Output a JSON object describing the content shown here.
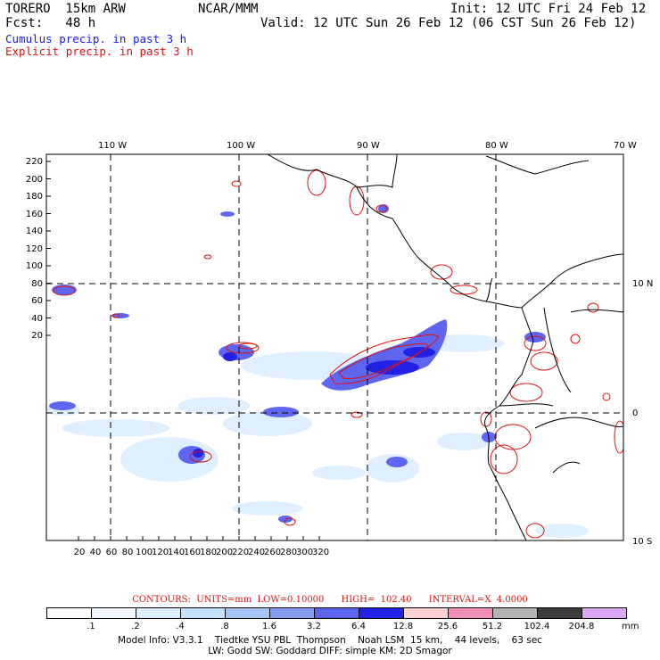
{
  "header": {
    "model": "TORERO  15km ARW",
    "org": "NCAR/MMM",
    "init": "Init: 12 UTC Fri 24 Feb 12",
    "fcst": "Fcst:   48 h",
    "valid": "Valid: 12 UTC Sun 26 Feb 12 (06 CST Sun 26 Feb 12)",
    "cumulus_label": "Cumulus precip. in past 3 h",
    "explicit_label": "Explicit precip. in past 3 h"
  },
  "colors": {
    "cumulus": "#1a1aff",
    "explicit": "#e01010",
    "coast": "#000000"
  },
  "axes": {
    "lon_labels": [
      "110 W",
      "100 W",
      "90 W",
      "80 W",
      "70 W"
    ],
    "lat_labels": [
      "10 N",
      "0",
      "10 S"
    ],
    "y_ticks": [
      "220",
      "200",
      "180",
      "160",
      "140",
      "120",
      "100",
      "80",
      "60",
      "40",
      "20"
    ],
    "x_ticks": [
      "20",
      "40",
      "60",
      "80",
      "100",
      "120",
      "140",
      "160",
      "180",
      "200",
      "220",
      "240",
      "260",
      "280",
      "300",
      "320"
    ]
  },
  "contours_line": {
    "prefix": "CONTOURS:  UNITS=mm  LOW=",
    "low": "0.10000",
    "high_label": "HIGH=",
    "high": "102.40",
    "interval_label": "INTERVAL=X",
    "interval": "4.0000"
  },
  "color_scale": {
    "fills": [
      "#ffffff",
      "#f2f8ff",
      "#dceeff",
      "#c5e3ff",
      "#a8c4f5",
      "#8a9cf0",
      "#5e66f0",
      "#2222e6",
      "#ffd2d2",
      "#f090b8",
      "#b4b4b4",
      "#3c3c3c",
      "#dca8f5"
    ],
    "labels": [
      ".1",
      ".2",
      ".4",
      ".8",
      "1.6",
      "3.2",
      "6.4",
      "12.8",
      "25.6",
      "51.2",
      "102.4",
      "204.8"
    ],
    "unit": "mm"
  },
  "footer": {
    "line1": "Model Info: V3.3.1    Tiedtke YSU PBL  Thompson    Noah LSM  15 km,    44 levels,    63 sec",
    "line2": "LW: Godd SW: Goddard DIFF: simple KM: 2D Smagor"
  }
}
